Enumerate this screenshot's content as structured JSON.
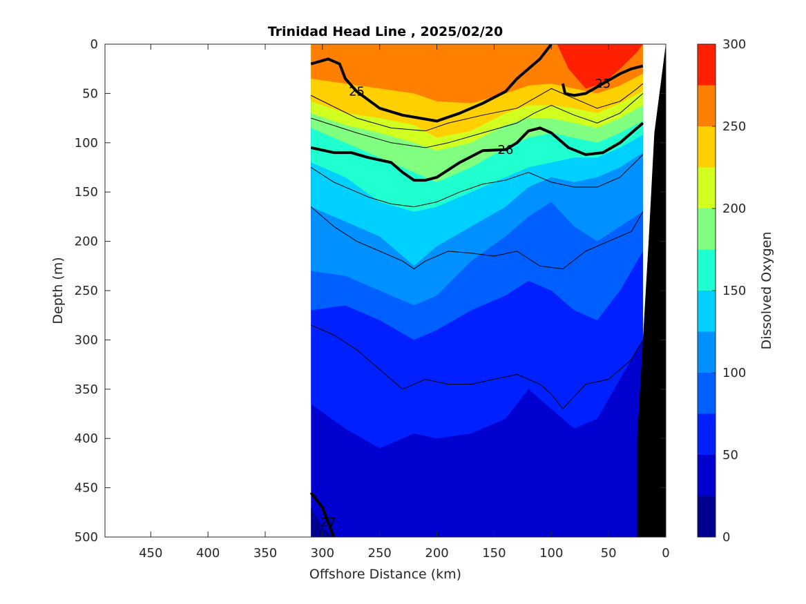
{
  "chart_data": {
    "type": "heatmap",
    "subtype": "filled-contour-section",
    "title": "Trinidad Head Line , 2025/02/20",
    "xlabel": "Offshore Distance (km)",
    "ylabel": "Depth (m)",
    "xlim": [
      490,
      0
    ],
    "x_reversed": true,
    "ylim": [
      0,
      500
    ],
    "y_reversed": true,
    "x_ticks": [
      450,
      400,
      350,
      300,
      250,
      200,
      150,
      100,
      50,
      0
    ],
    "y_ticks": [
      0,
      50,
      100,
      150,
      200,
      250,
      300,
      350,
      400,
      450,
      500
    ],
    "colorbar": {
      "label": "Dissolved Oxygen",
      "ticks": [
        0,
        50,
        100,
        150,
        200,
        250,
        300
      ],
      "levels": [
        0,
        25,
        50,
        75,
        100,
        125,
        150,
        175,
        200,
        225,
        250,
        275,
        300
      ],
      "colors": [
        "#00008F",
        "#0000CF",
        "#0020FF",
        "#0060FF",
        "#0090FF",
        "#00D0FF",
        "#20FFD0",
        "#80FF80",
        "#D0FF20",
        "#FFD000",
        "#FF8000",
        "#FF2000",
        "#CF0000"
      ]
    },
    "data_extent_x": [
      310,
      20
    ],
    "grid": false,
    "oxygen_boundaries": [
      {
        "level": 275,
        "x": [
          95,
          85,
          70,
          55,
          40,
          25,
          20
        ],
        "y": [
          0,
          25,
          45,
          40,
          25,
          8,
          0
        ]
      },
      {
        "level": 250,
        "x": [
          310,
          280,
          250,
          220,
          200,
          170,
          140,
          120,
          100,
          80,
          60,
          40,
          20
        ],
        "y": [
          35,
          40,
          45,
          50,
          58,
          60,
          50,
          42,
          40,
          45,
          50,
          42,
          30
        ]
      },
      {
        "level": 225,
        "x": [
          310,
          280,
          250,
          220,
          200,
          170,
          140,
          120,
          100,
          80,
          60,
          40,
          20
        ],
        "y": [
          58,
          70,
          75,
          82,
          95,
          88,
          70,
          62,
          62,
          65,
          70,
          60,
          48
        ]
      },
      {
        "level": 200,
        "x": [
          310,
          280,
          250,
          220,
          200,
          170,
          140,
          120,
          100,
          80,
          60,
          40,
          20
        ],
        "y": [
          70,
          82,
          90,
          100,
          108,
          100,
          82,
          75,
          75,
          80,
          85,
          75,
          62
        ]
      },
      {
        "level": 175,
        "x": [
          310,
          280,
          250,
          220,
          200,
          170,
          140,
          120,
          100,
          80,
          60,
          40,
          20
        ],
        "y": [
          85,
          100,
          115,
          130,
          140,
          125,
          105,
          95,
          90,
          95,
          100,
          90,
          78
        ]
      },
      {
        "level": 150,
        "x": [
          310,
          280,
          250,
          220,
          200,
          170,
          140,
          120,
          100,
          80,
          60,
          40,
          20
        ],
        "y": [
          120,
          135,
          160,
          170,
          165,
          150,
          135,
          125,
          120,
          115,
          115,
          105,
          92
        ]
      },
      {
        "level": 125,
        "x": [
          310,
          280,
          250,
          220,
          200,
          170,
          140,
          120,
          100,
          80,
          60,
          40,
          20
        ],
        "y": [
          165,
          180,
          195,
          225,
          205,
          185,
          165,
          145,
          135,
          140,
          135,
          125,
          110
        ]
      },
      {
        "level": 100,
        "x": [
          310,
          280,
          250,
          220,
          200,
          170,
          140,
          120,
          100,
          80,
          60,
          40,
          20
        ],
        "y": [
          230,
          235,
          250,
          265,
          255,
          220,
          195,
          175,
          160,
          185,
          200,
          185,
          170
        ]
      },
      {
        "level": 75,
        "x": [
          310,
          280,
          250,
          220,
          200,
          170,
          140,
          120,
          100,
          80,
          60,
          40,
          20
        ],
        "y": [
          270,
          265,
          280,
          300,
          290,
          270,
          255,
          240,
          250,
          270,
          280,
          250,
          210
        ]
      },
      {
        "level": 50,
        "x": [
          310,
          280,
          250,
          220,
          200,
          170,
          140,
          120,
          100,
          80,
          60,
          40,
          20
        ],
        "y": [
          365,
          390,
          410,
          395,
          400,
          395,
          380,
          350,
          370,
          390,
          380,
          340,
          300
        ]
      },
      {
        "level": 25,
        "x": [
          310,
          300,
          290
        ],
        "y": [
          470,
          490,
          500
        ]
      }
    ],
    "density_contours": [
      {
        "label": "25",
        "bold": true,
        "x": [
          310,
          295,
          285,
          280,
          270,
          250,
          230,
          200,
          180,
          160,
          140,
          130,
          110,
          100
        ],
        "y": [
          20,
          15,
          20,
          35,
          48,
          65,
          72,
          78,
          70,
          60,
          48,
          35,
          15,
          0
        ]
      },
      {
        "label": "25",
        "bold": true,
        "x": [
          90,
          88,
          80,
          70,
          55,
          40,
          30,
          20
        ],
        "y": [
          40,
          50,
          52,
          50,
          40,
          30,
          25,
          22
        ]
      },
      {
        "label": "",
        "bold": false,
        "x": [
          310,
          270,
          240,
          210,
          190,
          160,
          130,
          115,
          100,
          80,
          60,
          40,
          25,
          20
        ],
        "y": [
          52,
          75,
          85,
          88,
          80,
          72,
          65,
          55,
          45,
          55,
          65,
          58,
          45,
          40
        ]
      },
      {
        "label": "",
        "bold": false,
        "x": [
          310,
          270,
          240,
          210,
          190,
          160,
          130,
          115,
          100,
          80,
          60,
          40,
          25,
          20
        ],
        "y": [
          75,
          90,
          100,
          105,
          100,
          90,
          80,
          70,
          62,
          72,
          80,
          70,
          55,
          50
        ]
      },
      {
        "label": "26",
        "bold": true,
        "x": [
          310,
          290,
          275,
          260,
          240,
          230,
          220,
          210,
          200,
          180,
          160,
          140,
          130,
          120,
          110,
          100,
          85,
          70,
          55,
          40,
          30,
          20
        ],
        "y": [
          105,
          110,
          110,
          115,
          120,
          130,
          138,
          138,
          135,
          120,
          108,
          107,
          100,
          88,
          85,
          90,
          105,
          112,
          110,
          100,
          90,
          80
        ]
      },
      {
        "label": "",
        "bold": false,
        "x": [
          310,
          290,
          260,
          240,
          220,
          200,
          180,
          160,
          140,
          120,
          100,
          80,
          60,
          40,
          20
        ],
        "y": [
          125,
          140,
          155,
          162,
          165,
          160,
          150,
          142,
          138,
          130,
          140,
          145,
          145,
          135,
          112
        ]
      },
      {
        "label": "",
        "bold": false,
        "x": [
          310,
          290,
          270,
          250,
          230,
          220,
          210,
          190,
          170,
          150,
          130,
          110,
          90,
          70,
          50,
          30,
          20
        ],
        "y": [
          165,
          185,
          200,
          210,
          220,
          228,
          220,
          210,
          212,
          215,
          210,
          225,
          228,
          210,
          200,
          190,
          170
        ]
      },
      {
        "label": "",
        "bold": false,
        "x": [
          310,
          290,
          270,
          250,
          230,
          210,
          190,
          170,
          150,
          130,
          110,
          100,
          90,
          70,
          50,
          30,
          20
        ],
        "y": [
          285,
          295,
          310,
          330,
          350,
          340,
          345,
          345,
          340,
          335,
          345,
          355,
          370,
          345,
          340,
          320,
          300
        ]
      },
      {
        "label": "27",
        "bold": true,
        "x": [
          310,
          300,
          295,
          290
        ],
        "y": [
          455,
          470,
          485,
          500
        ]
      }
    ],
    "land_mask": {
      "x": [
        0,
        10,
        15,
        20,
        25,
        25,
        0
      ],
      "y": [
        0,
        90,
        200,
        300,
        400,
        500,
        500
      ]
    }
  }
}
